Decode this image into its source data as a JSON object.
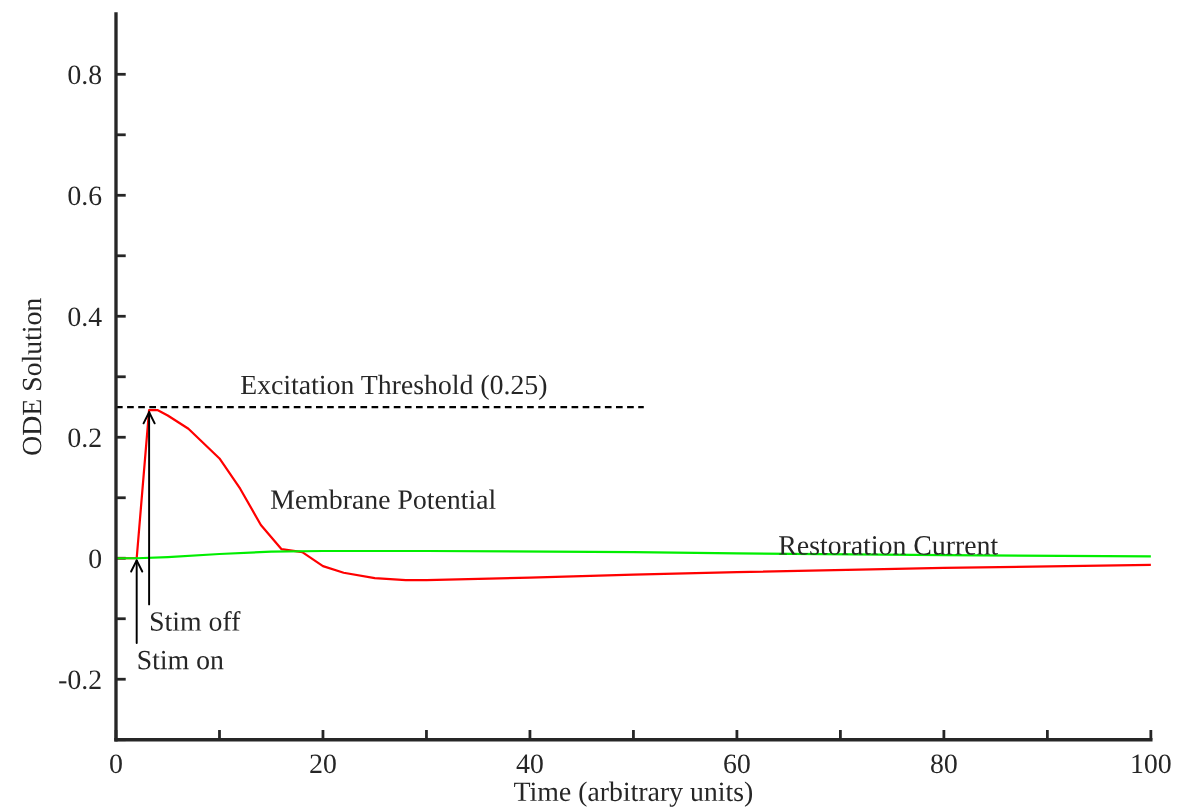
{
  "chart_data": {
    "type": "line",
    "xlabel": "Time (arbitrary units)",
    "ylabel": "ODE Solution",
    "xlim": [
      0,
      100
    ],
    "xticks": [
      0,
      {
        "value": 10,
        "label": null
      },
      20,
      {
        "value": 30,
        "label": null
      },
      40,
      {
        "value": 50,
        "label": null
      },
      60,
      {
        "value": 70,
        "label": null
      },
      80,
      {
        "value": 90,
        "label": null
      },
      100
    ],
    "ylim": [
      -0.3,
      0.9
    ],
    "yticks": [
      {
        "value": -0.3,
        "label": null
      },
      -0.2,
      {
        "value": -0.1,
        "label": null
      },
      0,
      {
        "value": 0.1,
        "label": null
      },
      0.2,
      {
        "value": 0.3,
        "label": null
      },
      0.4,
      {
        "value": 0.5,
        "label": null
      },
      0.6,
      {
        "value": 0.7,
        "label": null
      },
      0.8
    ],
    "grid": false,
    "legend": false,
    "marker": "none",
    "series": [
      {
        "name": "Membrane Potential",
        "color": "#ff0000",
        "line_style": "solid",
        "x": [
          0,
          2,
          3.2,
          4,
          5,
          7,
          10,
          12,
          14,
          16,
          18,
          20,
          22,
          25,
          28,
          30,
          40,
          50,
          60,
          80,
          100
        ],
        "values": [
          0,
          0,
          0.245,
          0.245,
          0.236,
          0.214,
          0.165,
          0.115,
          0.055,
          0.015,
          0.01,
          -0.013,
          -0.024,
          -0.033,
          -0.036,
          -0.036,
          -0.032,
          -0.027,
          -0.023,
          -0.016,
          -0.011
        ]
      },
      {
        "name": "Restoration Current",
        "color": "#00ee00",
        "line_style": "solid",
        "x": [
          0,
          2,
          5,
          10,
          15,
          20,
          30,
          50,
          60,
          80,
          100
        ],
        "values": [
          0,
          0,
          0.002,
          0.007,
          0.011,
          0.012,
          0.012,
          0.01,
          0.008,
          0.005,
          0.003
        ]
      },
      {
        "name": "Excitation Threshold (0.25)",
        "color": "#000000",
        "line_style": "dashed",
        "x": [
          0,
          51
        ],
        "values": [
          0.25,
          0.25
        ]
      }
    ],
    "annotations": [
      {
        "text": "Stim on",
        "x": 2,
        "y": 0
      },
      {
        "text": "Stim off",
        "x": 3.2,
        "y": 0.245
      }
    ]
  }
}
